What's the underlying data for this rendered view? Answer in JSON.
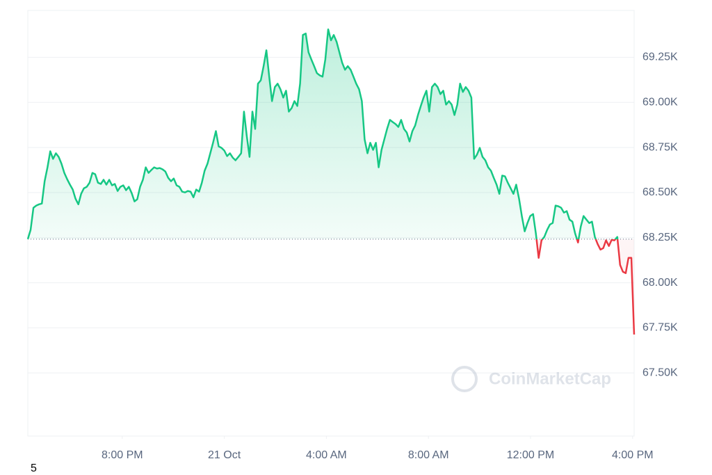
{
  "chart_data": {
    "type": "line",
    "x": [
      16.3,
      16.41,
      16.52,
      16.63,
      16.74,
      16.85,
      16.96,
      17.07,
      17.18,
      17.29,
      17.4,
      17.51,
      17.62,
      17.73,
      17.84,
      17.95,
      18.06,
      18.17,
      18.28,
      18.39,
      18.5,
      18.61,
      18.72,
      18.83,
      18.94,
      19.05,
      19.16,
      19.27,
      19.38,
      19.49,
      19.6,
      19.71,
      19.82,
      19.93,
      20.04,
      20.15,
      20.26,
      20.37,
      20.48,
      20.59,
      20.7,
      20.81,
      20.92,
      21.03,
      21.14,
      21.25,
      21.36,
      21.47,
      21.58,
      21.69,
      21.8,
      21.91,
      22.02,
      22.13,
      22.24,
      22.35,
      22.46,
      22.57,
      22.68,
      22.79,
      22.9,
      23.01,
      23.12,
      23.23,
      23.34,
      23.45,
      23.56,
      23.67,
      23.78,
      23.89,
      24.0,
      24.11,
      24.22,
      24.33,
      24.44,
      24.55,
      24.66,
      24.77,
      24.88,
      24.99,
      25.1,
      25.21,
      25.32,
      25.43,
      25.54,
      25.65,
      25.76,
      25.87,
      25.98,
      26.09,
      26.2,
      26.31,
      26.42,
      26.53,
      26.64,
      26.75,
      26.86,
      26.97,
      27.08,
      27.19,
      27.3,
      27.41,
      27.52,
      27.63,
      27.74,
      27.85,
      27.96,
      28.07,
      28.18,
      28.29,
      28.4,
      28.51,
      28.62,
      28.73,
      28.84,
      28.95,
      29.06,
      29.17,
      29.28,
      29.39,
      29.5,
      29.61,
      29.72,
      29.83,
      29.94,
      30.05,
      30.16,
      30.27,
      30.38,
      30.49,
      30.6,
      30.71,
      30.82,
      30.93,
      31.04,
      31.15,
      31.26,
      31.37,
      31.48,
      31.59,
      31.7,
      31.81,
      31.92,
      32.03,
      32.14,
      32.25,
      32.36,
      32.47,
      32.58,
      32.69,
      32.8,
      32.91,
      33.02,
      33.13,
      33.24,
      33.35,
      33.46,
      33.57,
      33.68,
      33.79,
      33.9,
      34.01,
      34.12,
      34.23,
      34.34,
      34.45,
      34.56,
      34.67,
      34.78,
      34.89,
      35.0,
      35.11,
      35.22,
      35.33,
      35.44,
      35.55,
      35.66,
      35.77,
      35.88,
      35.99,
      36.1,
      36.21,
      36.32,
      36.43,
      36.54,
      36.65,
      36.76,
      36.87,
      36.98,
      37.09,
      37.2,
      37.31,
      37.42,
      37.53,
      37.64,
      37.75,
      37.86,
      37.97,
      38.08,
      38.19,
      38.3,
      38.41,
      38.52,
      38.63,
      38.74,
      38.85,
      38.96,
      39.07,
      39.18,
      39.29,
      39.4,
      39.51,
      39.62,
      39.73,
      39.84,
      39.95,
      40.06
    ],
    "values": [
      68242,
      68293,
      68416,
      68428,
      68435,
      68439,
      68563,
      68640,
      68729,
      68687,
      68718,
      68698,
      68660,
      68609,
      68575,
      68544,
      68517,
      68466,
      68435,
      68493,
      68524,
      68532,
      68555,
      68609,
      68602,
      68555,
      68548,
      68571,
      68544,
      68571,
      68540,
      68548,
      68509,
      68532,
      68540,
      68513,
      68532,
      68497,
      68451,
      68463,
      68532,
      68571,
      68640,
      68609,
      68625,
      68640,
      68633,
      68636,
      68629,
      68617,
      68582,
      68563,
      68578,
      68540,
      68532,
      68505,
      68501,
      68509,
      68505,
      68474,
      68517,
      68505,
      68555,
      68621,
      68660,
      68718,
      68776,
      68841,
      68756,
      68748,
      68733,
      68702,
      68718,
      68694,
      68679,
      68698,
      68718,
      68949,
      68814,
      68698,
      68949,
      68853,
      69104,
      69123,
      69201,
      69289,
      69143,
      69007,
      69085,
      69104,
      69073,
      69027,
      69065,
      68949,
      68969,
      69007,
      68980,
      69104,
      69374,
      69382,
      69278,
      69239,
      69201,
      69162,
      69150,
      69143,
      69239,
      69405,
      69344,
      69374,
      69336,
      69278,
      69220,
      69181,
      69201,
      69181,
      69143,
      69104,
      69073,
      69007,
      68795,
      68718,
      68776,
      68737,
      68776,
      68640,
      68737,
      68795,
      68853,
      68903,
      68891,
      68880,
      68864,
      68903,
      68853,
      68833,
      68783,
      68841,
      68872,
      68930,
      68980,
      69027,
      69065,
      68949,
      69085,
      69104,
      69085,
      69046,
      69065,
      68988,
      69007,
      68988,
      68930,
      68988,
      69104,
      69058,
      69085,
      69065,
      69027,
      68687,
      68710,
      68748,
      68698,
      68679,
      68640,
      68621,
      68582,
      68544,
      68493,
      68594,
      68590,
      68555,
      68524,
      68493,
      68544,
      68466,
      68370,
      68285,
      68331,
      68370,
      68381,
      68273,
      68138,
      68235,
      68254,
      68293,
      68323,
      68331,
      68428,
      68424,
      68416,
      68389,
      68397,
      68350,
      68339,
      68273,
      68223,
      68312,
      68370,
      68350,
      68331,
      68339,
      68254,
      68215,
      68184,
      68192,
      68235,
      68204,
      68238,
      68235,
      68254,
      68099,
      68061,
      68053,
      68138,
      68138,
      67713
    ],
    "color": "#16c784",
    "down_color": "#ea3943",
    "xlim": [
      16.3,
      40.06
    ],
    "xticks": [
      {
        "value": 20,
        "label": "8:00 PM"
      },
      {
        "value": 24,
        "label": "21 Oct"
      },
      {
        "value": 28,
        "label": "4:00 AM"
      },
      {
        "value": 32,
        "label": "8:00 AM"
      },
      {
        "value": 36,
        "label": "12:00 PM"
      },
      {
        "value": 40,
        "label": "4:00 PM"
      }
    ],
    "ylim": [
      67150,
      69510
    ],
    "yticks": [
      {
        "value": 67500,
        "label": "67.50K"
      },
      {
        "value": 67750,
        "label": "67.75K"
      },
      {
        "value": 68000,
        "label": "68.00K"
      },
      {
        "value": 68250,
        "label": "68.25K"
      },
      {
        "value": 68500,
        "label": "68.50K"
      },
      {
        "value": 68750,
        "label": "68.75K"
      },
      {
        "value": 69000,
        "label": "69.00K"
      },
      {
        "value": 69250,
        "label": "69.25K"
      }
    ],
    "grid": true,
    "watermark": "CoinMarketCap",
    "footnote": "5"
  }
}
